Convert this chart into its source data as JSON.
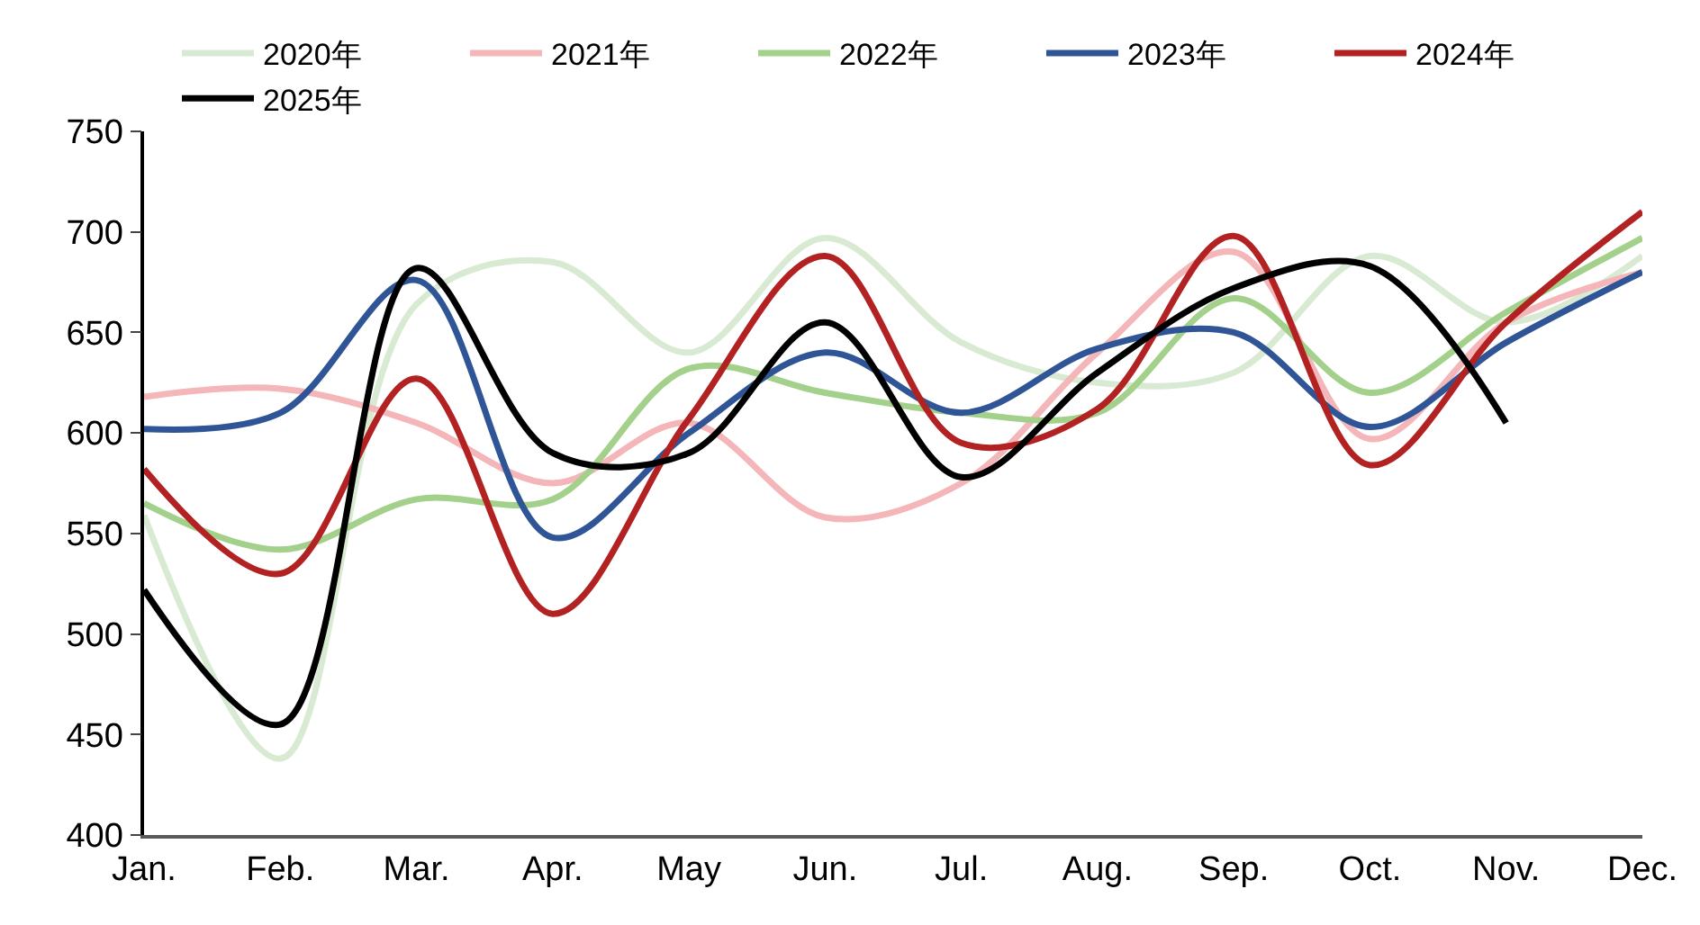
{
  "chart_data": {
    "type": "line",
    "categories": [
      "Jan.",
      "Feb.",
      "Mar.",
      "Apr.",
      "May",
      "Jun.",
      "Jul.",
      "Aug.",
      "Sep.",
      "Oct.",
      "Nov.",
      "Dec."
    ],
    "series": [
      {
        "name": "2020年",
        "color": "#d9ead3",
        "values": [
          559,
          438,
          664,
          685,
          640,
          697,
          645,
          625,
          630,
          688,
          655,
          688
        ]
      },
      {
        "name": "2021年",
        "color": "#f4b6b8",
        "values": [
          618,
          622,
          605,
          575,
          605,
          558,
          575,
          640,
          690,
          597,
          655,
          680
        ]
      },
      {
        "name": "2022年",
        "color": "#a3d18c",
        "values": [
          565,
          542,
          567,
          567,
          632,
          620,
          610,
          610,
          667,
          620,
          660,
          697
        ]
      },
      {
        "name": "2023年",
        "color": "#2f5597",
        "values": [
          602,
          610,
          676,
          548,
          600,
          640,
          610,
          642,
          650,
          603,
          645,
          680
        ]
      },
      {
        "name": "2024年",
        "color": "#b22222",
        "values": [
          582,
          530,
          627,
          510,
          607,
          688,
          595,
          612,
          698,
          584,
          655,
          710
        ]
      },
      {
        "name": "2025年",
        "color": "#000000",
        "values": [
          522,
          455,
          682,
          590,
          590,
          655,
          578,
          630,
          672,
          683,
          605,
          null
        ]
      }
    ],
    "ylim": [
      400,
      750
    ],
    "yticks": [
      400,
      450,
      500,
      550,
      600,
      650,
      700,
      750
    ],
    "legend": "top",
    "marker": "none",
    "line_style": "solid"
  }
}
